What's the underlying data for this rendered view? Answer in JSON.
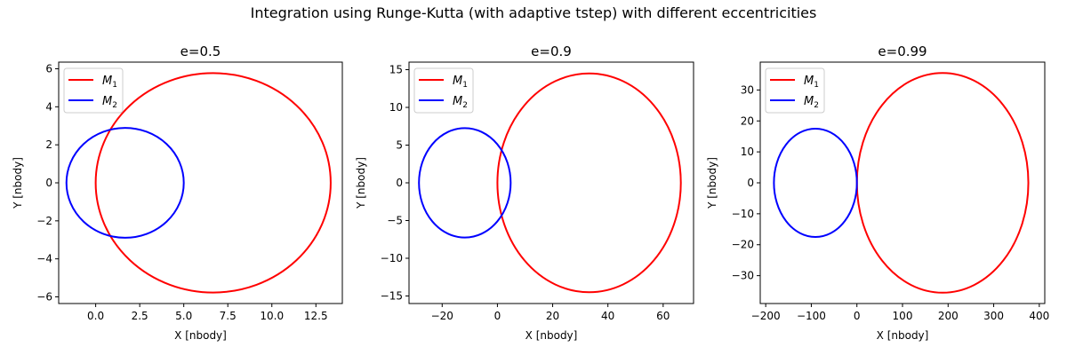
{
  "suptitle": "Integration using Runge-Kutta (with adaptive tstep) with different eccentricities",
  "colors": {
    "M1": "#ff0000",
    "M2": "#0000ff"
  },
  "chart_data": [
    {
      "type": "line",
      "title": "e=0.5",
      "xlabel": "X [nbody]",
      "ylabel": "Y [nbody]",
      "xlim": [
        -2.1,
        14.0
      ],
      "ylim": [
        -6.35,
        6.35
      ],
      "xticks": [
        0.0,
        2.5,
        5.0,
        7.5,
        10.0,
        12.5
      ],
      "xtick_labels": [
        "0.0",
        "2.5",
        "5.0",
        "7.5",
        "10.0",
        "12.5"
      ],
      "yticks": [
        -6,
        -4,
        -2,
        0,
        2,
        4,
        6
      ],
      "ytick_labels": [
        "−6",
        "−4",
        "−2",
        "0",
        "2",
        "4",
        "6"
      ],
      "legend": {
        "placement": "upper-left",
        "entries": [
          {
            "base": "M",
            "sub": "1"
          },
          {
            "base": "M",
            "sub": "2"
          }
        ]
      },
      "series": [
        {
          "name": "M1",
          "color": "#ff0000",
          "ellipse": {
            "cx": 6.67,
            "cy": 0,
            "rx": 6.67,
            "ry": 5.77
          }
        },
        {
          "name": "M2",
          "color": "#0000ff",
          "ellipse": {
            "cx": 1.67,
            "cy": 0,
            "rx": 3.33,
            "ry": 2.89
          }
        }
      ]
    },
    {
      "type": "line",
      "title": "e=0.9",
      "xlabel": "X [nbody]",
      "ylabel": "Y [nbody]",
      "xlim": [
        -32,
        71
      ],
      "ylim": [
        -16,
        16
      ],
      "xticks": [
        -20,
        0,
        20,
        40,
        60
      ],
      "xtick_labels": [
        "−20",
        "0",
        "20",
        "40",
        "60"
      ],
      "yticks": [
        -15,
        -10,
        -5,
        0,
        5,
        10,
        15
      ],
      "ytick_labels": [
        "−15",
        "−10",
        "−5",
        "0",
        "5",
        "10",
        "15"
      ],
      "legend": {
        "placement": "upper-left",
        "entries": [
          {
            "base": "M",
            "sub": "1"
          },
          {
            "base": "M",
            "sub": "2"
          }
        ]
      },
      "series": [
        {
          "name": "M1",
          "color": "#ff0000",
          "ellipse": {
            "cx": 33.2,
            "cy": 0,
            "rx": 33.2,
            "ry": 14.5
          }
        },
        {
          "name": "M2",
          "color": "#0000ff",
          "ellipse": {
            "cx": -11.8,
            "cy": 0,
            "rx": 16.6,
            "ry": 7.25
          }
        }
      ]
    },
    {
      "type": "line",
      "title": "e=0.99",
      "xlabel": "X [nbody]",
      "ylabel": "Y [nbody]",
      "xlim": [
        -212,
        412
      ],
      "ylim": [
        -39,
        39
      ],
      "xticks": [
        -200,
        -100,
        0,
        100,
        200,
        300,
        400
      ],
      "xtick_labels": [
        "−200",
        "−100",
        "0",
        "100",
        "200",
        "300",
        "400"
      ],
      "yticks": [
        -30,
        -20,
        -10,
        0,
        10,
        20,
        30
      ],
      "ytick_labels": [
        "−30",
        "−20",
        "−10",
        "0",
        "10",
        "20",
        "30"
      ],
      "legend": {
        "placement": "upper-left",
        "entries": [
          {
            "base": "M",
            "sub": "1"
          },
          {
            "base": "M",
            "sub": "2"
          }
        ]
      },
      "series": [
        {
          "name": "M1",
          "color": "#ff0000",
          "ellipse": {
            "cx": 188,
            "cy": 0,
            "rx": 188,
            "ry": 35.5
          }
        },
        {
          "name": "M2",
          "color": "#0000ff",
          "ellipse": {
            "cx": -91,
            "cy": 0,
            "rx": 91,
            "ry": 17.5
          }
        }
      ]
    }
  ]
}
